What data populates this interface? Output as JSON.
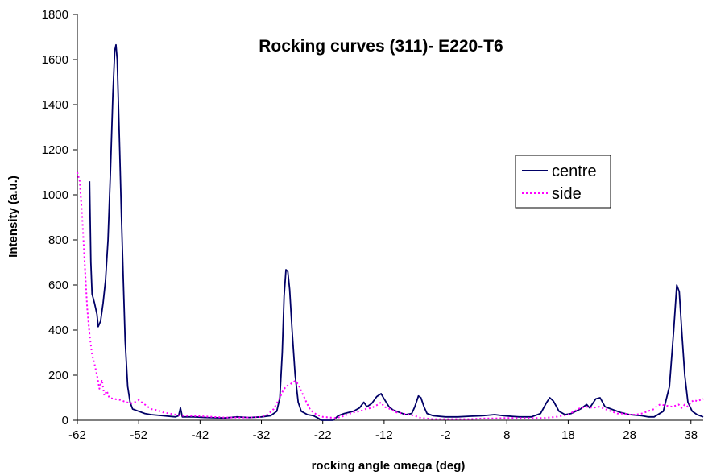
{
  "chart_data": {
    "type": "line",
    "title": "Rocking curves (311)- E220-T6",
    "xlabel": "rocking angle omega (deg)",
    "ylabel": "Intensity (a.u.)",
    "xlim": [
      -62,
      40
    ],
    "ylim": [
      0,
      1800
    ],
    "xticks": [
      -62,
      -52,
      -42,
      -32,
      -22,
      -12,
      -2,
      8,
      18,
      28,
      38
    ],
    "yticks": [
      0,
      200,
      400,
      600,
      800,
      1000,
      1200,
      1400,
      1600,
      1800
    ],
    "grid": false,
    "legend": {
      "placement": "right",
      "entries": [
        "centre",
        "side"
      ]
    },
    "series": [
      {
        "name": "centre",
        "color": "#000066",
        "style": "solid",
        "points": [
          [
            -60,
            1060
          ],
          [
            -59.8,
            700
          ],
          [
            -59.6,
            560
          ],
          [
            -59.2,
            520
          ],
          [
            -58.8,
            470
          ],
          [
            -58.6,
            415
          ],
          [
            -58.2,
            440
          ],
          [
            -57.8,
            520
          ],
          [
            -57.4,
            620
          ],
          [
            -57,
            800
          ],
          [
            -56.6,
            1100
          ],
          [
            -56.2,
            1450
          ],
          [
            -55.9,
            1640
          ],
          [
            -55.7,
            1665
          ],
          [
            -55.5,
            1600
          ],
          [
            -55.1,
            1200
          ],
          [
            -54.8,
            900
          ],
          [
            -54.5,
            620
          ],
          [
            -54.2,
            350
          ],
          [
            -53.8,
            150
          ],
          [
            -53.4,
            80
          ],
          [
            -53,
            50
          ],
          [
            -52,
            40
          ],
          [
            -51,
            30
          ],
          [
            -50,
            25
          ],
          [
            -48,
            20
          ],
          [
            -46,
            15
          ],
          [
            -45.5,
            20
          ],
          [
            -45.2,
            55
          ],
          [
            -44.9,
            15
          ],
          [
            -43,
            15
          ],
          [
            -41,
            12
          ],
          [
            -38,
            10
          ],
          [
            -36,
            15
          ],
          [
            -34,
            12
          ],
          [
            -32,
            15
          ],
          [
            -30.5,
            20
          ],
          [
            -29.5,
            40
          ],
          [
            -29,
            100
          ],
          [
            -28.6,
            300
          ],
          [
            -28.3,
            550
          ],
          [
            -28,
            668
          ],
          [
            -27.7,
            660
          ],
          [
            -27.4,
            580
          ],
          [
            -27,
            400
          ],
          [
            -26.5,
            200
          ],
          [
            -26,
            80
          ],
          [
            -25.5,
            40
          ],
          [
            -24.5,
            25
          ],
          [
            -23.5,
            20
          ],
          [
            -22.8,
            10
          ],
          [
            -22.2,
            0
          ],
          [
            -21,
            0
          ],
          [
            -20.3,
            0
          ],
          [
            -19.5,
            20
          ],
          [
            -18.5,
            30
          ],
          [
            -17,
            40
          ],
          [
            -16,
            55
          ],
          [
            -15.3,
            80
          ],
          [
            -14.8,
            60
          ],
          [
            -14,
            75
          ],
          [
            -13.2,
            105
          ],
          [
            -12.5,
            118
          ],
          [
            -12,
            95
          ],
          [
            -11.2,
            60
          ],
          [
            -10.5,
            45
          ],
          [
            -9.5,
            35
          ],
          [
            -8.5,
            25
          ],
          [
            -7.5,
            30
          ],
          [
            -7,
            60
          ],
          [
            -6.4,
            108
          ],
          [
            -6,
            100
          ],
          [
            -5.5,
            60
          ],
          [
            -5,
            30
          ],
          [
            -4,
            20
          ],
          [
            -2,
            15
          ],
          [
            0,
            15
          ],
          [
            2,
            18
          ],
          [
            4,
            20
          ],
          [
            6,
            25
          ],
          [
            7.5,
            20
          ],
          [
            10,
            15
          ],
          [
            12,
            15
          ],
          [
            13.5,
            30
          ],
          [
            14.5,
            80
          ],
          [
            15,
            100
          ],
          [
            15.6,
            85
          ],
          [
            16.5,
            40
          ],
          [
            17.5,
            25
          ],
          [
            18.5,
            30
          ],
          [
            20,
            50
          ],
          [
            21,
            70
          ],
          [
            21.5,
            55
          ],
          [
            22.5,
            95
          ],
          [
            23.2,
            100
          ],
          [
            24,
            60
          ],
          [
            25,
            50
          ],
          [
            26.5,
            35
          ],
          [
            28,
            25
          ],
          [
            30,
            20
          ],
          [
            31,
            15
          ],
          [
            32,
            15
          ],
          [
            33.5,
            40
          ],
          [
            34.5,
            150
          ],
          [
            35.2,
            400
          ],
          [
            35.7,
            600
          ],
          [
            36.1,
            570
          ],
          [
            36.5,
            400
          ],
          [
            37,
            200
          ],
          [
            37.5,
            80
          ],
          [
            38.2,
            40
          ],
          [
            39,
            25
          ],
          [
            40,
            15
          ]
        ]
      },
      {
        "name": "side",
        "color": "#FF00FF",
        "style": "dotted",
        "points": [
          [
            -62,
            1100
          ],
          [
            -61.6,
            1060
          ],
          [
            -61.2,
            900
          ],
          [
            -60.8,
            700
          ],
          [
            -60.4,
            500
          ],
          [
            -60,
            380
          ],
          [
            -59.6,
            290
          ],
          [
            -59.2,
            250
          ],
          [
            -58.8,
            200
          ],
          [
            -58.4,
            140
          ],
          [
            -58,
            180
          ],
          [
            -57.6,
            110
          ],
          [
            -57.2,
            130
          ],
          [
            -56.8,
            100
          ],
          [
            -56,
            95
          ],
          [
            -55,
            90
          ],
          [
            -54,
            80
          ],
          [
            -53,
            75
          ],
          [
            -52,
            90
          ],
          [
            -51,
            70
          ],
          [
            -50,
            50
          ],
          [
            -49,
            45
          ],
          [
            -48,
            35
          ],
          [
            -47,
            30
          ],
          [
            -46,
            25
          ],
          [
            -45,
            20
          ],
          [
            -44,
            20
          ],
          [
            -42,
            18
          ],
          [
            -40,
            15
          ],
          [
            -38,
            12
          ],
          [
            -36,
            12
          ],
          [
            -34,
            12
          ],
          [
            -32,
            15
          ],
          [
            -31,
            25
          ],
          [
            -30,
            50
          ],
          [
            -29,
            100
          ],
          [
            -28.5,
            130
          ],
          [
            -28,
            150
          ],
          [
            -27.3,
            160
          ],
          [
            -26.5,
            175
          ],
          [
            -26,
            160
          ],
          [
            -25.5,
            130
          ],
          [
            -25,
            100
          ],
          [
            -24.5,
            70
          ],
          [
            -24,
            45
          ],
          [
            -23,
            25
          ],
          [
            -22,
            15
          ],
          [
            -20,
            10
          ],
          [
            -19,
            15
          ],
          [
            -18,
            25
          ],
          [
            -17,
            35
          ],
          [
            -16,
            40
          ],
          [
            -15,
            50
          ],
          [
            -14,
            55
          ],
          [
            -13,
            70
          ],
          [
            -12.5,
            80
          ],
          [
            -12,
            60
          ],
          [
            -11,
            50
          ],
          [
            -10,
            35
          ],
          [
            -9,
            30
          ],
          [
            -8,
            25
          ],
          [
            -7,
            20
          ],
          [
            -6,
            10
          ],
          [
            -4,
            5
          ],
          [
            -2,
            5
          ],
          [
            0,
            5
          ],
          [
            2,
            5
          ],
          [
            4,
            8
          ],
          [
            6,
            8
          ],
          [
            8,
            10
          ],
          [
            10,
            10
          ],
          [
            12,
            10
          ],
          [
            14,
            10
          ],
          [
            16,
            15
          ],
          [
            18,
            25
          ],
          [
            19,
            40
          ],
          [
            20,
            55
          ],
          [
            21,
            60
          ],
          [
            22,
            55
          ],
          [
            23,
            60
          ],
          [
            24,
            50
          ],
          [
            25,
            40
          ],
          [
            26,
            30
          ],
          [
            27,
            30
          ],
          [
            28,
            25
          ],
          [
            29,
            25
          ],
          [
            30,
            30
          ],
          [
            31,
            40
          ],
          [
            32,
            50
          ],
          [
            32.5,
            65
          ],
          [
            33,
            70
          ],
          [
            34,
            65
          ],
          [
            35,
            60
          ],
          [
            36,
            70
          ],
          [
            36.5,
            55
          ],
          [
            37,
            70
          ],
          [
            37.5,
            60
          ],
          [
            38,
            80
          ],
          [
            38.5,
            90
          ],
          [
            39,
            85
          ],
          [
            40,
            95
          ]
        ]
      }
    ]
  }
}
